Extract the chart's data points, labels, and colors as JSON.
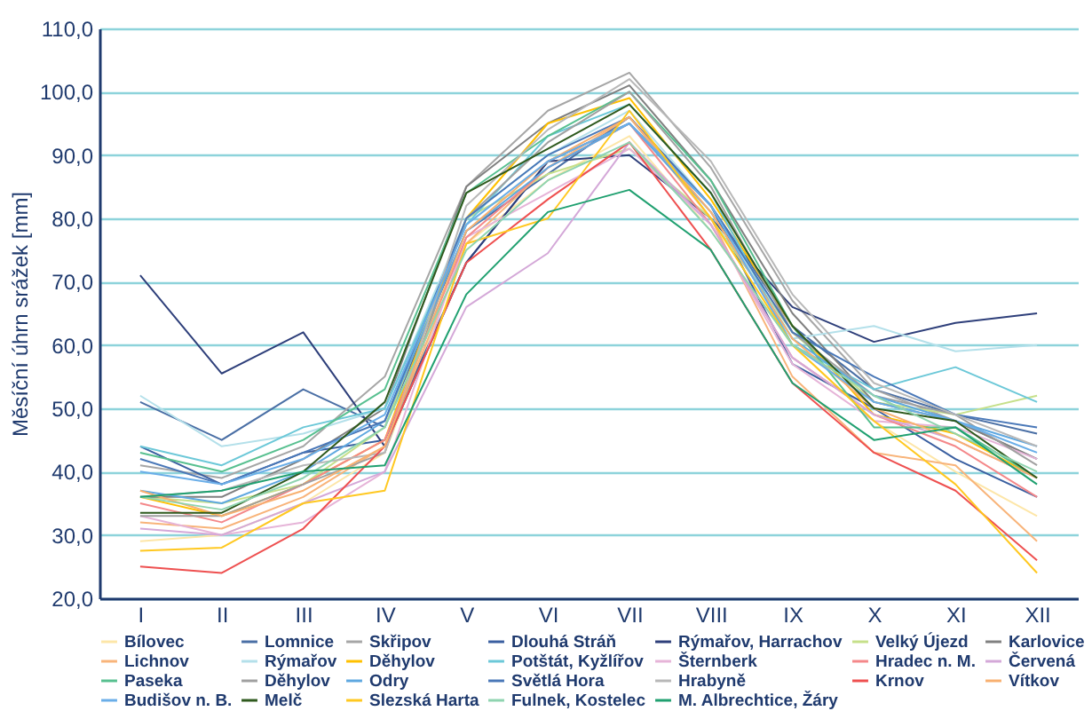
{
  "chart_data": {
    "type": "line",
    "ylabel": "Měsíční úhrn srážek [mm]",
    "categories": [
      "I",
      "II",
      "III",
      "IV",
      "V",
      "VI",
      "VII",
      "VIII",
      "IX",
      "X",
      "XI",
      "XII"
    ],
    "ylim": [
      20,
      110
    ],
    "yticks": [
      {
        "value": 20,
        "label": "20,0"
      },
      {
        "value": 30,
        "label": "30,0"
      },
      {
        "value": 40,
        "label": "40,0"
      },
      {
        "value": 50,
        "label": "50,0"
      },
      {
        "value": 60,
        "label": "60,0"
      },
      {
        "value": 70,
        "label": "70,0"
      },
      {
        "value": 80,
        "label": "80,0"
      },
      {
        "value": 90,
        "label": "90,0"
      },
      {
        "value": 100,
        "label": "100,0"
      },
      {
        "value": 110,
        "label": "110,0"
      }
    ],
    "grid": "y",
    "legend": "bottom",
    "marker": "none",
    "line_style": "solid",
    "series": [
      {
        "name": "Bílovec",
        "color": "#fde6a8",
        "values": [
          29,
          30,
          35,
          43,
          76,
          86,
          93,
          78,
          60,
          48,
          40,
          33
        ]
      },
      {
        "name": "Lomnice",
        "color": "#4a6fa5",
        "values": [
          51,
          45,
          53,
          47,
          78,
          87,
          96,
          82,
          63,
          53,
          49,
          46
        ]
      },
      {
        "name": "Skřipov",
        "color": "#a6a6a6",
        "values": [
          41,
          39,
          44,
          55,
          85,
          97,
          103,
          88,
          67,
          53,
          48,
          42
        ]
      },
      {
        "name": "Dlouhá Stráň",
        "color": "#3a5fa0",
        "values": [
          44,
          38,
          43,
          45,
          73,
          89,
          95,
          82,
          57,
          50,
          42,
          36
        ]
      },
      {
        "name": "Rýmařov, Harrachov",
        "color": "#2e3f7a",
        "values": [
          71,
          55.5,
          62,
          44,
          73,
          89,
          90,
          80,
          66,
          60.5,
          63.5,
          65
        ]
      },
      {
        "name": "Velký Újezd",
        "color": "#c6e08a",
        "values": [
          36,
          35,
          38,
          47,
          80,
          87,
          91,
          80,
          62,
          51,
          49,
          52
        ]
      },
      {
        "name": "Karlovice",
        "color": "#808080",
        "values": [
          36,
          36,
          42,
          50,
          85,
          95,
          101,
          86,
          65,
          51,
          48,
          42
        ]
      },
      {
        "name": "Lichnov",
        "color": "#f8b47a",
        "values": [
          32,
          31,
          36,
          44,
          76,
          88,
          96,
          80,
          55,
          43,
          41,
          29
        ]
      },
      {
        "name": "Rýmařov",
        "color": "#b4e0ea",
        "values": [
          52,
          44,
          46,
          50,
          80,
          90,
          97,
          82,
          61,
          63,
          59,
          60
        ]
      },
      {
        "name": "Děhylov",
        "color": "#ffc000",
        "values": [
          36,
          33,
          38,
          45,
          80,
          95,
          99,
          83,
          63,
          49,
          46,
          39
        ]
      },
      {
        "name": "Potštát, Kyžlířov",
        "color": "#6cc8d8",
        "values": [
          44,
          41,
          47,
          50,
          79,
          93,
          98,
          84,
          60,
          53,
          56.5,
          51
        ]
      },
      {
        "name": "Šternberk",
        "color": "#e6b4d8",
        "values": [
          33,
          30,
          32,
          40,
          77,
          84,
          91,
          79,
          57,
          48,
          47,
          42
        ]
      },
      {
        "name": "Hradec n. M.",
        "color": "#f4888a",
        "values": [
          35,
          32,
          38,
          45,
          77,
          88,
          95,
          79,
          58,
          49,
          44,
          36
        ]
      },
      {
        "name": "Červená",
        "color": "#d4a8d8",
        "values": [
          31,
          30,
          35,
          40,
          66,
          74.5,
          92,
          79,
          58,
          49,
          45,
          39
        ]
      },
      {
        "name": "Paseka",
        "color": "#58c090",
        "values": [
          43,
          40,
          45,
          53,
          84,
          93,
          100,
          86,
          63,
          47,
          47,
          39
        ]
      },
      {
        "name": "Děhylov",
        "color": "#a0a0a0",
        "values": [
          33,
          33,
          38,
          43,
          80,
          92,
          100,
          85,
          62,
          52,
          49,
          41
        ]
      },
      {
        "name": "Odry",
        "color": "#5fa8e0",
        "values": [
          37,
          35,
          40,
          48,
          78,
          88,
          95,
          81,
          61,
          52,
          48,
          44
        ]
      },
      {
        "name": "Světlá Hora",
        "color": "#4a78b8",
        "values": [
          42,
          38,
          43,
          48,
          80,
          90,
          96,
          82,
          62,
          55,
          49,
          47
        ]
      },
      {
        "name": "Hrabyně",
        "color": "#b8b8b8",
        "values": [
          36,
          37,
          41,
          43,
          82,
          94,
          102,
          89,
          68,
          54,
          49,
          44
        ]
      },
      {
        "name": "Krnov",
        "color": "#ee5050",
        "values": [
          25,
          24,
          31,
          44,
          73,
          83,
          92,
          75,
          54,
          43,
          37,
          26
        ]
      },
      {
        "name": "Vítkov",
        "color": "#f8b070",
        "values": [
          37,
          33,
          37,
          44,
          78,
          89,
          96,
          81,
          61,
          50,
          45,
          39
        ]
      },
      {
        "name": "Budišov n. B.",
        "color": "#6aaee8",
        "values": [
          40,
          38,
          42,
          49,
          79,
          89,
          95,
          82,
          60,
          51,
          48,
          43
        ]
      },
      {
        "name": "Melč",
        "color": "#2f5a1e",
        "values": [
          33.5,
          33.5,
          40,
          51,
          84,
          91,
          98,
          84,
          63,
          50,
          48,
          39
        ]
      },
      {
        "name": "Slezská Harta",
        "color": "#ffc820",
        "values": [
          27.5,
          28,
          35,
          37,
          76,
          80,
          97,
          80,
          60,
          48,
          38,
          24
        ]
      },
      {
        "name": "Fulnek, Kostelec",
        "color": "#8fd4b0",
        "values": [
          36,
          34,
          39,
          47,
          75,
          86,
          92,
          78,
          60,
          52,
          46,
          40
        ]
      },
      {
        "name": "M. Albrechtice, Žáry",
        "color": "#20a070",
        "values": [
          36,
          37,
          40,
          41,
          68,
          81,
          84.5,
          75,
          54,
          45,
          47,
          38
        ]
      }
    ]
  }
}
